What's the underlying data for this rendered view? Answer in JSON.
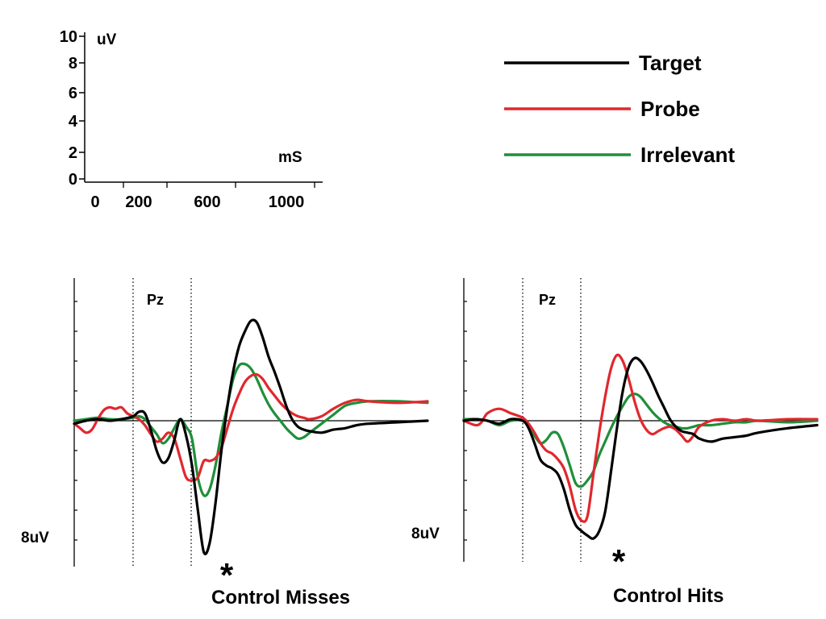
{
  "legend": {
    "items": [
      {
        "name": "Target",
        "color": "#000000"
      },
      {
        "name": "Probe",
        "color": "#e0282e"
      },
      {
        "name": "Irrelevant",
        "color": "#1f8f3a"
      }
    ]
  },
  "scale_bar": {
    "y_unit": "uV",
    "x_unit": "mS",
    "y_ticks": [
      0,
      2,
      4,
      6,
      8,
      10
    ],
    "x_ticks": [
      0,
      200,
      600,
      1000
    ],
    "x_tick_labels": [
      "0",
      "200",
      "600",
      "1000"
    ],
    "y_tick_labels": [
      "0",
      "2",
      "4",
      "6",
      "8",
      "10"
    ],
    "xlim": [
      0,
      1000
    ],
    "ylim": [
      0,
      10
    ]
  },
  "chart_data": [
    {
      "type": "line",
      "title": "Control Misses",
      "channel": "Pz",
      "amplitude_label": "8uV",
      "star": "*",
      "xlim": [
        0,
        1200
      ],
      "ylim": [
        -10,
        10
      ],
      "window_ms": [
        200,
        400
      ],
      "series": [
        {
          "name": "Target",
          "color": "#000000",
          "x": [
            0,
            40,
            80,
            120,
            160,
            200,
            220,
            240,
            260,
            280,
            300,
            320,
            340,
            360,
            380,
            400,
            420,
            440,
            460,
            480,
            500,
            520,
            540,
            560,
            580,
            600,
            620,
            640,
            660,
            680,
            700,
            720,
            740,
            760,
            780,
            800,
            840,
            880,
            920,
            960,
            1000,
            1100,
            1200
          ],
          "y": [
            -0.2,
            0.0,
            0.1,
            0.0,
            0.1,
            0.3,
            0.6,
            0.5,
            -0.6,
            -2.0,
            -2.8,
            -2.5,
            -1.3,
            0.1,
            -1.0,
            -3.0,
            -6.0,
            -8.8,
            -8.2,
            -5.5,
            -2.0,
            0.9,
            3.3,
            5.0,
            6.0,
            6.7,
            6.6,
            5.6,
            4.3,
            3.3,
            2.2,
            1.0,
            0.1,
            -0.4,
            -0.6,
            -0.7,
            -0.8,
            -0.6,
            -0.5,
            -0.3,
            -0.2,
            -0.1,
            0.0
          ]
        },
        {
          "name": "Probe",
          "color": "#e0282e",
          "x": [
            0,
            20,
            40,
            60,
            80,
            100,
            120,
            140,
            160,
            180,
            200,
            220,
            240,
            260,
            280,
            300,
            320,
            340,
            360,
            380,
            400,
            420,
            440,
            460,
            480,
            500,
            520,
            540,
            560,
            580,
            600,
            620,
            640,
            660,
            680,
            700,
            720,
            740,
            760,
            780,
            800,
            840,
            880,
            920,
            960,
            1000,
            1100,
            1200
          ],
          "y": [
            -0.2,
            -0.5,
            -0.8,
            -0.6,
            0.1,
            0.7,
            0.9,
            0.8,
            0.9,
            0.5,
            0.3,
            0.1,
            -0.3,
            -0.9,
            -1.4,
            -1.2,
            -0.8,
            -1.2,
            -2.5,
            -3.8,
            -4.0,
            -3.8,
            -2.7,
            -2.7,
            -2.5,
            -1.8,
            -0.5,
            0.8,
            1.8,
            2.6,
            3.0,
            3.1,
            2.8,
            2.2,
            1.7,
            1.2,
            0.8,
            0.5,
            0.3,
            0.2,
            0.1,
            0.3,
            0.8,
            1.2,
            1.4,
            1.3,
            1.2,
            1.3
          ]
        },
        {
          "name": "Irrelevant",
          "color": "#1f8f3a",
          "x": [
            0,
            40,
            80,
            120,
            160,
            200,
            220,
            240,
            260,
            280,
            300,
            320,
            340,
            360,
            380,
            400,
            420,
            440,
            460,
            480,
            500,
            520,
            540,
            560,
            580,
            600,
            620,
            640,
            660,
            680,
            700,
            720,
            740,
            760,
            780,
            800,
            840,
            880,
            920,
            960,
            1000,
            1100,
            1200
          ],
          "y": [
            0.0,
            0.1,
            0.2,
            0.1,
            0.1,
            0.2,
            0.3,
            0.1,
            -0.4,
            -0.9,
            -1.5,
            -1.2,
            -0.5,
            0.1,
            -0.4,
            -1.2,
            -3.8,
            -5.0,
            -4.6,
            -3.0,
            -0.8,
            1.0,
            2.8,
            3.7,
            3.8,
            3.5,
            2.8,
            1.9,
            1.1,
            0.5,
            0.0,
            -0.5,
            -0.9,
            -1.2,
            -1.1,
            -0.8,
            -0.2,
            0.4,
            1.0,
            1.2,
            1.3,
            1.3,
            1.2
          ]
        }
      ]
    },
    {
      "type": "line",
      "title": "Control Hits",
      "channel": "Pz",
      "amplitude_label": "8uV",
      "star": "*",
      "xlim": [
        0,
        1200
      ],
      "ylim": [
        -10,
        10
      ],
      "window_ms": [
        200,
        400
      ],
      "series": [
        {
          "name": "Target",
          "color": "#000000",
          "x": [
            0,
            40,
            80,
            120,
            160,
            200,
            220,
            240,
            260,
            280,
            300,
            320,
            340,
            360,
            380,
            400,
            420,
            440,
            460,
            480,
            500,
            520,
            540,
            560,
            580,
            600,
            620,
            640,
            660,
            680,
            700,
            720,
            740,
            760,
            780,
            800,
            840,
            880,
            920,
            960,
            1000,
            1100,
            1200
          ],
          "y": [
            0.0,
            0.1,
            0.0,
            -0.2,
            0.1,
            0.0,
            -0.5,
            -1.5,
            -2.6,
            -3.0,
            -3.2,
            -3.6,
            -4.6,
            -6.0,
            -7.0,
            -7.4,
            -7.7,
            -7.9,
            -7.4,
            -6.1,
            -3.4,
            -0.5,
            2.0,
            3.6,
            4.2,
            4.0,
            3.4,
            2.6,
            1.7,
            0.9,
            0.1,
            -0.4,
            -0.7,
            -0.8,
            -0.9,
            -1.2,
            -1.4,
            -1.2,
            -1.1,
            -1.0,
            -0.8,
            -0.5,
            -0.3
          ]
        },
        {
          "name": "Probe",
          "color": "#e0282e",
          "x": [
            0,
            40,
            60,
            80,
            120,
            160,
            200,
            220,
            240,
            260,
            280,
            300,
            320,
            340,
            360,
            380,
            400,
            420,
            440,
            460,
            480,
            500,
            520,
            540,
            560,
            580,
            600,
            620,
            640,
            660,
            680,
            700,
            720,
            740,
            760,
            780,
            800,
            840,
            880,
            920,
            960,
            1000,
            1100,
            1200
          ],
          "y": [
            0.0,
            -0.3,
            -0.1,
            0.5,
            0.8,
            0.5,
            0.2,
            -0.2,
            -0.8,
            -1.5,
            -2.0,
            -2.2,
            -2.6,
            -3.2,
            -4.4,
            -6.0,
            -6.7,
            -6.4,
            -3.6,
            -0.8,
            1.6,
            3.5,
            4.4,
            4.0,
            2.8,
            1.3,
            0.1,
            -0.6,
            -0.9,
            -0.7,
            -0.5,
            -0.4,
            -0.6,
            -1.0,
            -1.4,
            -1.0,
            -0.4,
            0.0,
            0.1,
            0.0,
            0.1,
            0.0,
            0.1,
            0.1
          ]
        },
        {
          "name": "Irrelevant",
          "color": "#1f8f3a",
          "x": [
            0,
            40,
            80,
            120,
            160,
            200,
            220,
            240,
            260,
            280,
            300,
            320,
            340,
            360,
            380,
            400,
            420,
            440,
            460,
            480,
            500,
            520,
            540,
            560,
            580,
            600,
            620,
            640,
            660,
            680,
            700,
            720,
            740,
            760,
            780,
            800,
            840,
            880,
            920,
            960,
            1000,
            1100,
            1200
          ],
          "y": [
            0.1,
            0.1,
            0.0,
            -0.3,
            0.0,
            0.0,
            -0.4,
            -1.0,
            -1.5,
            -1.3,
            -0.8,
            -0.9,
            -1.8,
            -3.0,
            -4.2,
            -4.4,
            -4.0,
            -3.4,
            -2.3,
            -1.4,
            -0.5,
            0.3,
            1.0,
            1.6,
            1.8,
            1.6,
            1.1,
            0.6,
            0.2,
            -0.1,
            -0.3,
            -0.4,
            -0.5,
            -0.5,
            -0.4,
            -0.3,
            -0.3,
            -0.2,
            -0.1,
            -0.1,
            0.0,
            -0.1,
            0.0
          ]
        }
      ]
    }
  ]
}
